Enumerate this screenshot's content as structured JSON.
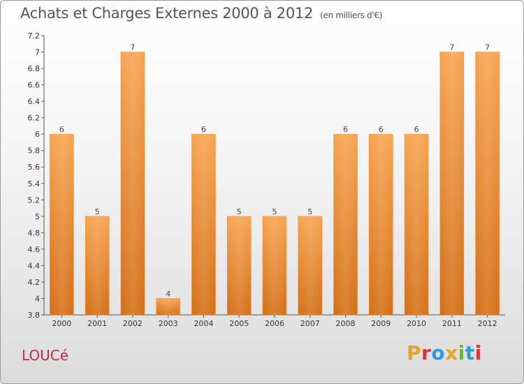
{
  "header": {
    "title": "Achats et Charges Externes 2000 à 2012",
    "unit": "(en milliers d'€)"
  },
  "commune": "LOUCé",
  "logo": {
    "text": "Proxiti",
    "colors": [
      "#e8a12a",
      "#d9362f",
      "#2f9ad6",
      "#e8a12a",
      "#6cb33f",
      "#2f9ad6",
      "#d9362f"
    ]
  },
  "chart_data": {
    "type": "bar",
    "title": "Achats et Charges Externes 2000 à 2012",
    "unit": "(en milliers d'€)",
    "categories": [
      "2000",
      "2001",
      "2002",
      "2003",
      "2004",
      "2005",
      "2006",
      "2007",
      "2008",
      "2009",
      "2010",
      "2011",
      "2012"
    ],
    "values": [
      6,
      5,
      7,
      4,
      6,
      5,
      5,
      5,
      6,
      6,
      6,
      7,
      7
    ],
    "data_labels": [
      "6",
      "5",
      "7",
      "4",
      "6",
      "5",
      "5",
      "5",
      "6",
      "6",
      "6",
      "7",
      "7"
    ],
    "ylim": [
      3.8,
      7.2
    ],
    "yticks": [
      "3.8",
      "4",
      "4.2",
      "4.4",
      "4.6",
      "4.8",
      "5",
      "5.2",
      "5.4",
      "5.6",
      "5.8",
      "6",
      "6.2",
      "6.4",
      "6.6",
      "6.8",
      "7",
      "7.2"
    ],
    "grid": false,
    "bar_color": "#f0953a"
  }
}
